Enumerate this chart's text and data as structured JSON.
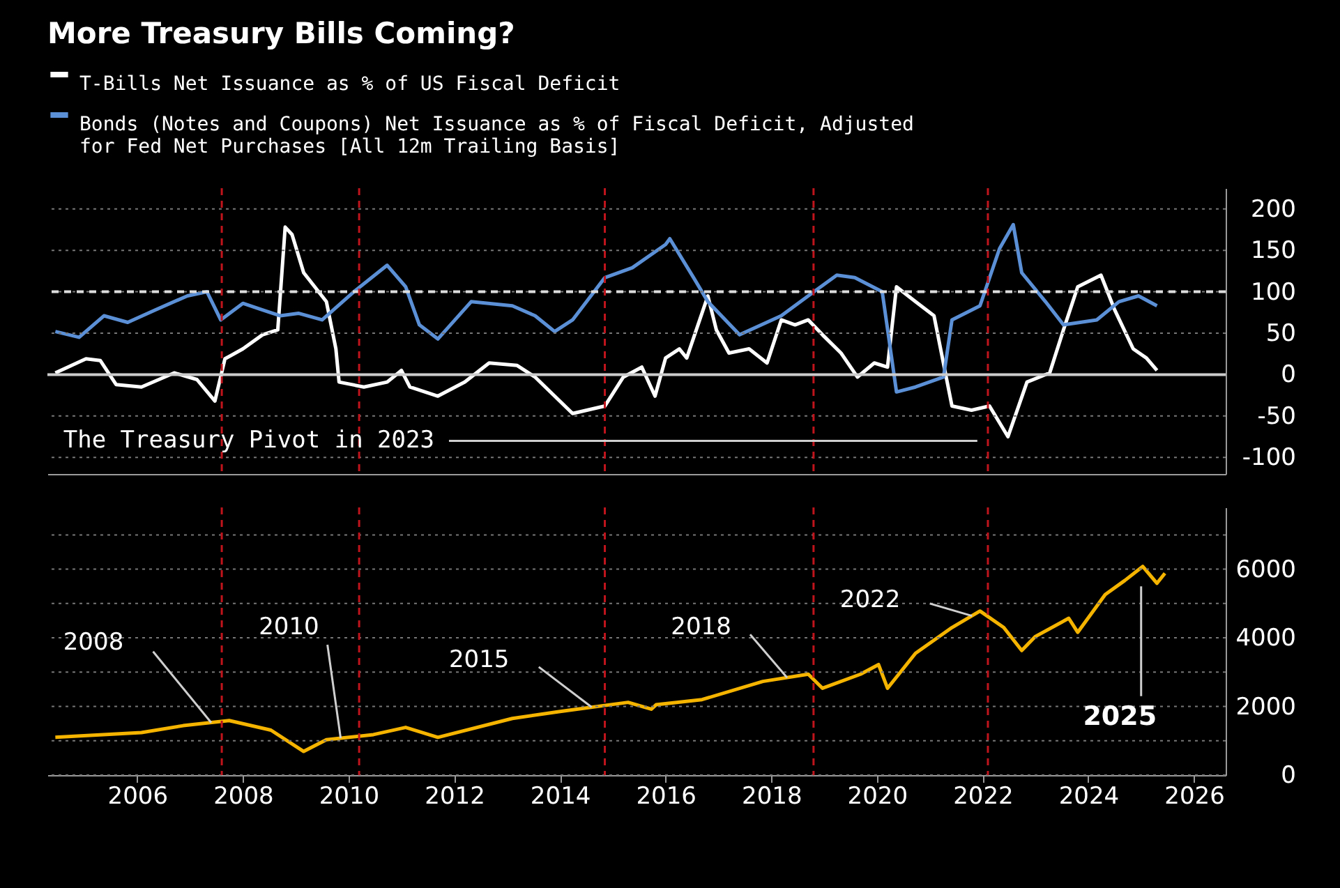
{
  "chart_data": [
    {
      "type": "line",
      "title": "More Treasury Bills Coming?",
      "xlim": [
        2004.3,
        2026.6
      ],
      "ylim": [
        -120,
        225
      ],
      "yticks": [
        -100,
        -50,
        0,
        50,
        100,
        150,
        200
      ],
      "grid": "y",
      "legend": "top left",
      "tick_labels": "y",
      "series": [
        {
          "name": "T-Bills Net Issuance as % of US Fiscal Deficit",
          "color": "#ffffff",
          "x": [
            2004.45,
            2005.03,
            2005.3,
            2005.6,
            2006.08,
            2006.7,
            2007.13,
            2007.47,
            2007.66,
            2008.0,
            2008.37,
            2008.66,
            2008.8,
            2008.93,
            2009.15,
            2009.58,
            2009.76,
            2009.82,
            2010.29,
            2010.73,
            2011.0,
            2011.16,
            2011.69,
            2012.2,
            2012.66,
            2013.19,
            2013.53,
            2014.24,
            2014.85,
            2015.2,
            2015.55,
            2015.8,
            2016.0,
            2016.26,
            2016.4,
            2016.8,
            2016.96,
            2017.2,
            2017.58,
            2017.92,
            2018.19,
            2018.45,
            2018.7,
            2018.97,
            2019.32,
            2019.63,
            2019.95,
            2020.2,
            2020.37,
            2020.73,
            2021.08,
            2021.42,
            2021.79,
            2022.13,
            2022.48,
            2022.84,
            2023.27,
            2023.53,
            2023.8,
            2024.24,
            2024.5,
            2024.85,
            2025.1,
            2025.3
          ],
          "values": [
            2,
            19,
            17,
            -12,
            -15,
            2,
            -6,
            -32,
            19,
            31,
            48,
            54,
            178,
            169,
            123,
            88,
            31,
            -9,
            -15,
            -9,
            5,
            -15,
            -26,
            -9,
            14,
            11,
            -3,
            -47,
            -38,
            -3,
            9,
            -26,
            20,
            31,
            20,
            95,
            54,
            26,
            31,
            14,
            66,
            60,
            66,
            48,
            26,
            -3,
            14,
            9,
            106,
            88,
            71,
            -38,
            -43,
            -38,
            -75,
            -9,
            2,
            54,
            106,
            120,
            78,
            31,
            20,
            5
          ]
        },
        {
          "name": "Bonds (Notes and Coupons) Net Issuance as % of Fiscal Deficit, Adjusted for Fed Net Purchases [All 12m Trailing Basis]",
          "color": "#5b8fd6",
          "x": [
            2004.45,
            2004.9,
            2005.37,
            2005.82,
            2006.34,
            2006.95,
            2007.32,
            2007.58,
            2008.0,
            2008.37,
            2008.71,
            2009.05,
            2009.5,
            2010.1,
            2010.73,
            2011.08,
            2011.34,
            2011.69,
            2012.32,
            2013.1,
            2013.53,
            2013.9,
            2014.24,
            2014.85,
            2015.37,
            2016.0,
            2016.08,
            2016.53,
            2016.8,
            2017.4,
            2018.19,
            2018.7,
            2019.24,
            2019.58,
            2020.1,
            2020.37,
            2020.73,
            2021.26,
            2021.42,
            2021.95,
            2022.32,
            2022.58,
            2022.74,
            2023.19,
            2023.53,
            2024.16,
            2024.58,
            2024.95,
            2025.3
          ],
          "values": [
            52,
            45,
            71,
            63,
            78,
            95,
            100,
            66,
            86,
            78,
            71,
            74,
            66,
            100,
            132,
            106,
            60,
            43,
            88,
            83,
            71,
            52,
            66,
            117,
            129,
            157,
            164,
            117,
            88,
            48,
            71,
            95,
            120,
            117,
            100,
            -21,
            -15,
            -3,
            66,
            83,
            152,
            181,
            123,
            88,
            60,
            66,
            88,
            95,
            83
          ]
        }
      ],
      "ref_lines": [
        {
          "axis": "y",
          "value": 100,
          "color": "#dddddd",
          "line_style": "dashed"
        },
        {
          "axis": "y",
          "value": 0,
          "color": "#cccccc",
          "line_style": "solid"
        },
        {
          "axis": "x",
          "value": 2007.6,
          "color": "#c0141c",
          "line_style": "dashed"
        },
        {
          "axis": "x",
          "value": 2010.2,
          "color": "#c0141c",
          "line_style": "dashed"
        },
        {
          "axis": "x",
          "value": 2014.85,
          "color": "#c0141c",
          "line_style": "dashed"
        },
        {
          "axis": "x",
          "value": 2018.8,
          "color": "#c0141c",
          "line_style": "dashed"
        },
        {
          "axis": "x",
          "value": 2022.1,
          "color": "#c0141c",
          "line_style": "dashed"
        }
      ],
      "annotations": [
        "The Treasury Pivot in 2023"
      ]
    },
    {
      "type": "line",
      "xlim": [
        2004.3,
        2026.6
      ],
      "xticks": [
        2006,
        2008,
        2010,
        2012,
        2014,
        2016,
        2018,
        2020,
        2022,
        2024,
        2026
      ],
      "ylim": [
        0,
        7800
      ],
      "yticks": [
        0,
        {
          "value": 1000,
          "label": null
        },
        2000,
        {
          "value": 3000,
          "label": null
        },
        4000,
        {
          "value": 5000,
          "label": null
        },
        6000,
        {
          "value": 7000,
          "label": null
        }
      ],
      "grid": "y",
      "series": [
        {
          "color": "#f5b400",
          "x": [
            2004.45,
            2006.08,
            2006.87,
            2007.74,
            2008.53,
            2009.15,
            2009.58,
            2010.47,
            2011.08,
            2011.69,
            2013.1,
            2013.98,
            2015.29,
            2015.73,
            2015.82,
            2016.69,
            2017.84,
            2018.7,
            2018.97,
            2019.69,
            2020.03,
            2020.2,
            2020.73,
            2021.42,
            2021.95,
            2022.4,
            2022.74,
            2023.0,
            2023.63,
            2023.8,
            2024.32,
            2024.69,
            2025.03,
            2025.3,
            2025.45
          ],
          "values": [
            1100,
            1240,
            1440,
            1590,
            1310,
            690,
            1030,
            1180,
            1390,
            1100,
            1650,
            1850,
            2120,
            1920,
            2050,
            2200,
            2730,
            2940,
            2530,
            2940,
            3220,
            2530,
            3550,
            4300,
            4780,
            4300,
            3630,
            4040,
            4570,
            4160,
            5260,
            5670,
            6080,
            5590,
            5880
          ]
        }
      ],
      "ref_lines": [
        {
          "axis": "x",
          "value": 2007.6,
          "color": "#c0141c",
          "line_style": "dashed"
        },
        {
          "axis": "x",
          "value": 2010.2,
          "color": "#c0141c",
          "line_style": "dashed"
        },
        {
          "axis": "x",
          "value": 2014.85,
          "color": "#c0141c",
          "line_style": "dashed"
        },
        {
          "axis": "x",
          "value": 2018.8,
          "color": "#c0141c",
          "line_style": "dashed"
        },
        {
          "axis": "x",
          "value": 2022.1,
          "color": "#c0141c",
          "line_style": "dashed"
        }
      ],
      "annotations": [
        {
          "text": "2008",
          "x": 2007.4,
          "y": 1530
        },
        {
          "text": "2010",
          "x": 2009.85,
          "y": 1075
        },
        {
          "text": "2015",
          "x": 2014.6,
          "y": 1980
        },
        {
          "text": "2018",
          "x": 2018.3,
          "y": 2840
        },
        {
          "text": "2022",
          "x": 2021.8,
          "y": 4640
        },
        "2025"
      ]
    }
  ]
}
